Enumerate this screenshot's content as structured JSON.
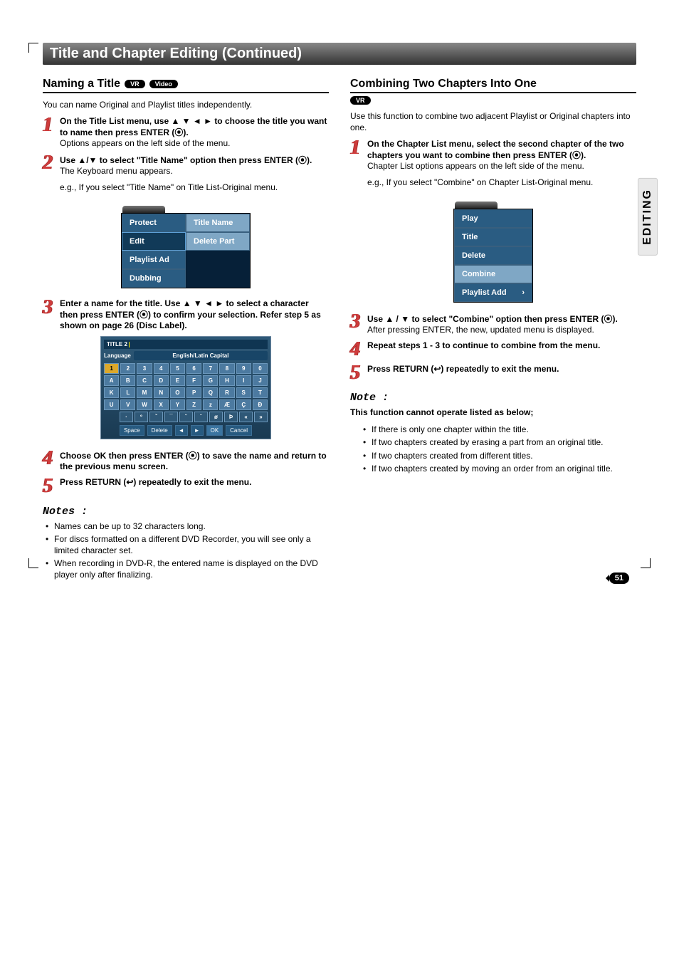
{
  "side_tab": "EDITING",
  "header": {
    "title": "Title and Chapter Editing (Continued)"
  },
  "left": {
    "heading": "Naming a Title",
    "pill_vr": "VR",
    "pill_video": "Video",
    "intro": "You can name Original and Playlist titles independently.",
    "steps": [
      {
        "n": "1",
        "lead": "On the Title List menu, use ▲ ▼ ◄ ► to choose the title you want to name then press ENTER (⦿).",
        "body": "Options appears on the left side of the menu."
      },
      {
        "n": "2",
        "lead": "Use ▲/▼ to select \"Title Name\" option then press ENTER (⦿).",
        "body": "The Keyboard menu appears.",
        "body2": "e.g., If you select \"Title Name\" on Title List-Original menu."
      },
      {
        "n": "3",
        "lead": "Enter a name for the title. Use ▲ ▼ ◄ ► to select a character then press ENTER (⦿) to confirm your selection. Refer step 5 as shown on page 26 (Disc Label)."
      },
      {
        "n": "4",
        "lead": "Choose OK then press ENTER (⦿) to save the name and return to the previous menu screen."
      },
      {
        "n": "5",
        "lead": "Press RETURN (↩) repeatedly to exit the menu."
      }
    ],
    "menu": {
      "col1": [
        "Protect",
        "Edit",
        "Playlist Ad",
        "Dubbing"
      ],
      "col2": [
        "Title Name",
        "Delete Part"
      ]
    },
    "kbd": {
      "title": "TITLE 2",
      "lang_label": "Language",
      "lang_value": "English/Latin Capital",
      "rows": [
        [
          "1",
          "2",
          "3",
          "4",
          "5",
          "6",
          "7",
          "8",
          "9",
          "0"
        ],
        [
          "A",
          "B",
          "C",
          "D",
          "E",
          "F",
          "G",
          "H",
          "I",
          "J"
        ],
        [
          "K",
          "L",
          "M",
          "N",
          "O",
          "P",
          "Q",
          "R",
          "S",
          "T"
        ],
        [
          "U",
          "V",
          "W",
          "X",
          "Y",
          "Z",
          "z",
          "Æ",
          "Ç",
          "Ð"
        ]
      ],
      "row5": [
        "·",
        "º",
        "ˇ",
        "¯",
        "˘",
        "¨",
        "ø",
        "Þ",
        "«",
        "»"
      ],
      "bottom": [
        "Space",
        "Delete",
        "◄",
        "►",
        "OK",
        "Cancel"
      ]
    },
    "notes_h": "Notes :",
    "notes": [
      "Names can be up to 32 characters long.",
      "For discs formatted on a different DVD Recorder, you will see only a limited character set.",
      "When recording in DVD-R, the entered name is displayed on the DVD player only after finalizing."
    ]
  },
  "right": {
    "heading": "Combining Two Chapters Into One",
    "pill_vr": "VR",
    "intro": "Use this function to combine two adjacent Playlist or Original chapters into one.",
    "steps": [
      {
        "n": "1",
        "lead": "On the Chapter List menu, select the second chapter of the two chapters you want to combine then press ENTER (⦿).",
        "body": "Chapter List options appears on the left side of the menu.",
        "body2": "e.g., If you select \"Combine\" on Chapter List-Original menu."
      },
      {
        "n": "3",
        "lead": "Use ▲ / ▼ to select \"Combine\" option then press ENTER (⦿).",
        "body": "After pressing ENTER, the new, updated menu is displayed."
      },
      {
        "n": "4",
        "lead": "Repeat steps 1 - 3 to continue to combine from the menu."
      },
      {
        "n": "5",
        "lead": "Press RETURN (↩) repeatedly to exit the menu."
      }
    ],
    "menu": [
      "Play",
      "Title",
      "Delete",
      "Combine",
      "Playlist Add"
    ],
    "note_h": "Note :",
    "note_lead": "This function cannot operate listed as below;",
    "notes": [
      "If there is only one chapter within the title.",
      "If two chapters created by erasing a part from an original title.",
      "If two chapters created from different titles.",
      "If two chapters created by moving an order from an original title."
    ]
  },
  "page": "51"
}
